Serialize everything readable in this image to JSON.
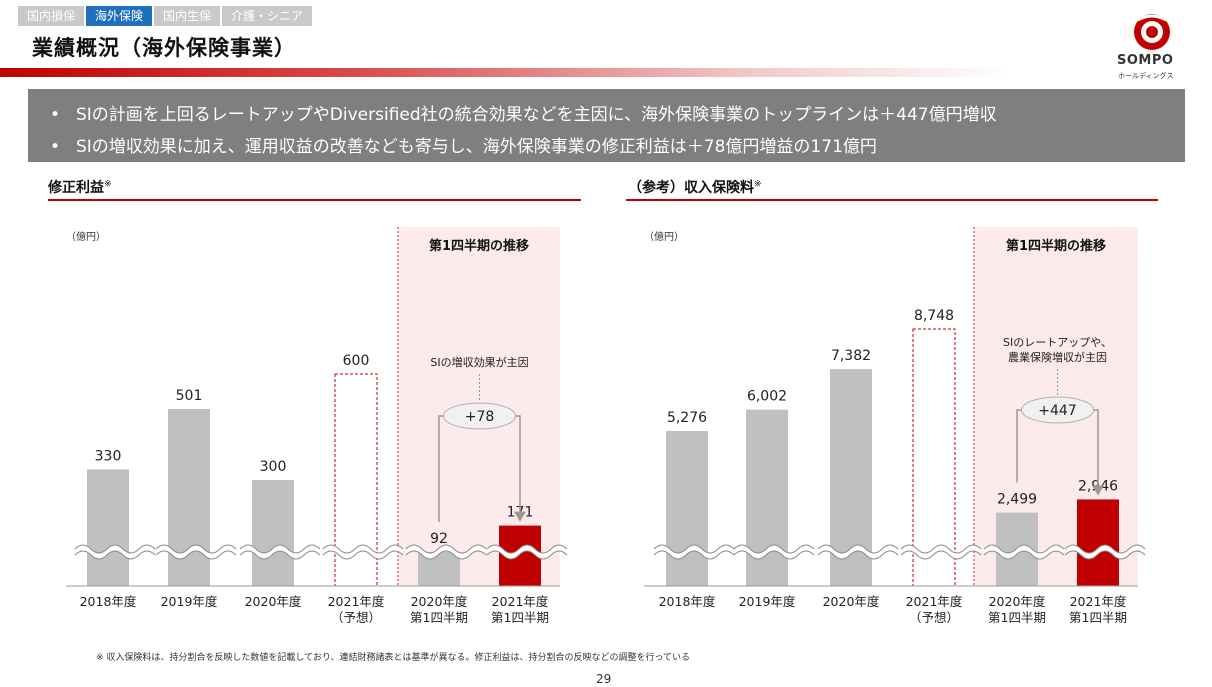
{
  "header": {
    "tabs": [
      {
        "label": "国内損保",
        "active": false
      },
      {
        "label": "海外保険",
        "active": true
      },
      {
        "label": "国内生保",
        "active": false
      },
      {
        "label": "介護・シニア",
        "active": false
      }
    ],
    "title": "業績概況（海外保険事業）",
    "logo_text": "SOMPO",
    "logo_sub": "ホールディングス"
  },
  "banner": {
    "bullets": [
      "SIの計画を上回るレートアップやDiversified社の統合効果などを主因に、海外保険事業のトップラインは＋447億円増収",
      "SIの増収効果に加え、運用収益の改善なども寄与し、海外保険事業の修正利益は＋78億円増益の171億円"
    ]
  },
  "colors": {
    "accent": "#c00000",
    "bar_gray": "#c0c0c0",
    "highlight_bg": "#fdeaea"
  },
  "chart_data": [
    {
      "type": "bar",
      "title": "修正利益",
      "title_mark": "※",
      "unit": "（億円）",
      "categories": [
        [
          "2018年度"
        ],
        [
          "2019年度"
        ],
        [
          "2020年度"
        ],
        [
          "2021年度",
          "（予想）"
        ],
        [
          "2020年度",
          "第1四半期"
        ],
        [
          "2021年度",
          "第1四半期"
        ]
      ],
      "values": [
        330,
        501,
        300,
        600,
        92,
        171
      ],
      "value_labels": [
        "330",
        "501",
        "300",
        "600",
        "92",
        "171"
      ],
      "bar_styles": [
        "gray",
        "gray",
        "gray",
        "dashed",
        "gray",
        "red"
      ],
      "highlight_label": "第1四半期の推移",
      "annotation": "SIの増収効果が主因",
      "delta": "+78",
      "axis_break": true
    },
    {
      "type": "bar",
      "title": "（参考）収入保険料",
      "title_mark": "※",
      "unit": "（億円）",
      "categories": [
        [
          "2018年度"
        ],
        [
          "2019年度"
        ],
        [
          "2020年度"
        ],
        [
          "2021年度",
          "（予想）"
        ],
        [
          "2020年度",
          "第1四半期"
        ],
        [
          "2021年度",
          "第1四半期"
        ]
      ],
      "values": [
        5276,
        6002,
        7382,
        8748,
        2499,
        2946
      ],
      "value_labels": [
        "5,276",
        "6,002",
        "7,382",
        "8,748",
        "2,499",
        "2,946"
      ],
      "bar_styles": [
        "gray",
        "gray",
        "gray",
        "dashed",
        "gray",
        "red"
      ],
      "highlight_label": "第1四半期の推移",
      "annotation": "SIのレートアップや、\n農業保険増収が主因",
      "delta": "+447",
      "axis_break": true
    }
  ],
  "footnote": "※ 収入保険料は、持分割合を反映した数値を記載しており、連結財務諸表とは基準が異なる。修正利益は、持分割合の反映などの調整を行っている",
  "page_number": "29"
}
